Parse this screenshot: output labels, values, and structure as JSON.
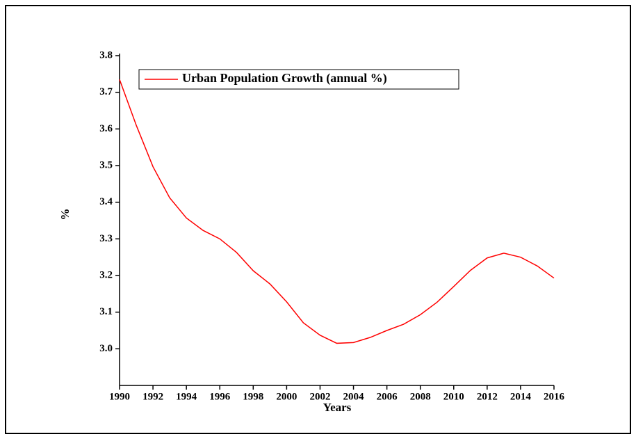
{
  "chart_data": {
    "type": "line",
    "x_label": "Years",
    "y_label": "%",
    "x": [
      1990,
      1991,
      1992,
      1993,
      1994,
      1995,
      1996,
      1997,
      1998,
      1999,
      2000,
      2001,
      2002,
      2003,
      2004,
      2005,
      2006,
      2007,
      2008,
      2009,
      2010,
      2011,
      2012,
      2013,
      2014,
      2015,
      2016
    ],
    "series": [
      {
        "name": "Urban Population Growth (annual %)",
        "color": "#ff0000",
        "values": [
          3.735,
          3.61,
          3.497,
          3.412,
          3.357,
          3.323,
          3.3,
          3.263,
          3.213,
          3.177,
          3.128,
          3.071,
          3.037,
          3.015,
          3.017,
          3.031,
          3.05,
          3.067,
          3.093,
          3.127,
          3.17,
          3.214,
          3.248,
          3.261,
          3.25,
          3.226,
          3.193
        ]
      }
    ],
    "xlim": [
      1990,
      2016
    ],
    "xticks": [
      1990,
      1992,
      1994,
      1996,
      1998,
      2000,
      2002,
      2004,
      2006,
      2008,
      2010,
      2012,
      2014,
      2016
    ],
    "ylim": [
      2.9,
      3.8
    ],
    "yticks": [
      {
        "value": 3,
        "label": "3.0"
      },
      3.1,
      3.2,
      3.3,
      3.4,
      3.5,
      3.6,
      3.7,
      3.8
    ],
    "grid": false,
    "legend": "top-left"
  }
}
